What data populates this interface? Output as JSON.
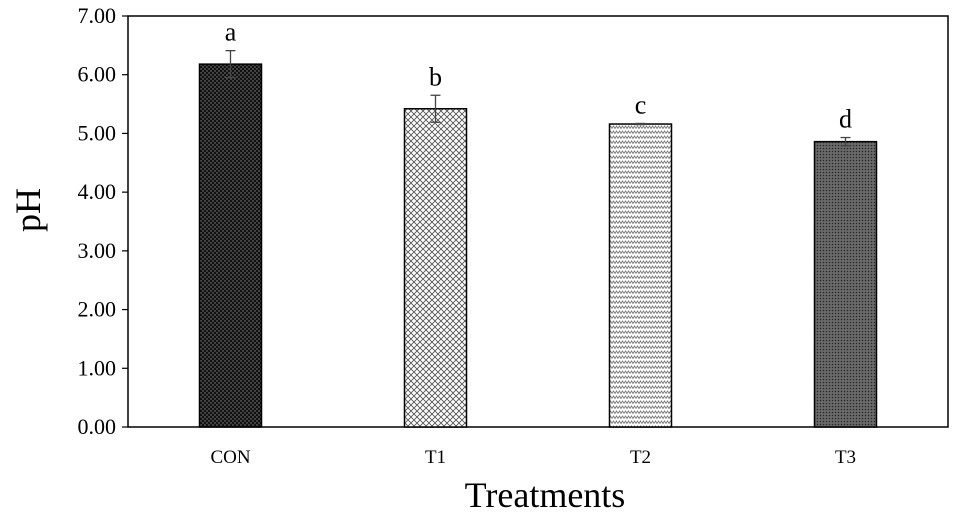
{
  "chart_data": {
    "type": "bar",
    "title": "",
    "xlabel": "Treatments",
    "ylabel": "pH",
    "ylim": [
      0,
      7
    ],
    "yticks": [
      "0.00",
      "1.00",
      "2.00",
      "3.00",
      "4.00",
      "5.00",
      "6.00",
      "7.00"
    ],
    "categories": [
      "CON",
      "T1",
      "T2",
      "T3"
    ],
    "values": [
      6.18,
      5.42,
      5.16,
      4.86
    ],
    "errors": [
      0.23,
      0.23,
      0.01,
      0.07
    ],
    "significance_letters": [
      "a",
      "b",
      "c",
      "d"
    ],
    "bar_patterns": [
      "dense-dots",
      "crosshatch",
      "zigzag",
      "fine-dots"
    ],
    "grid": false
  }
}
